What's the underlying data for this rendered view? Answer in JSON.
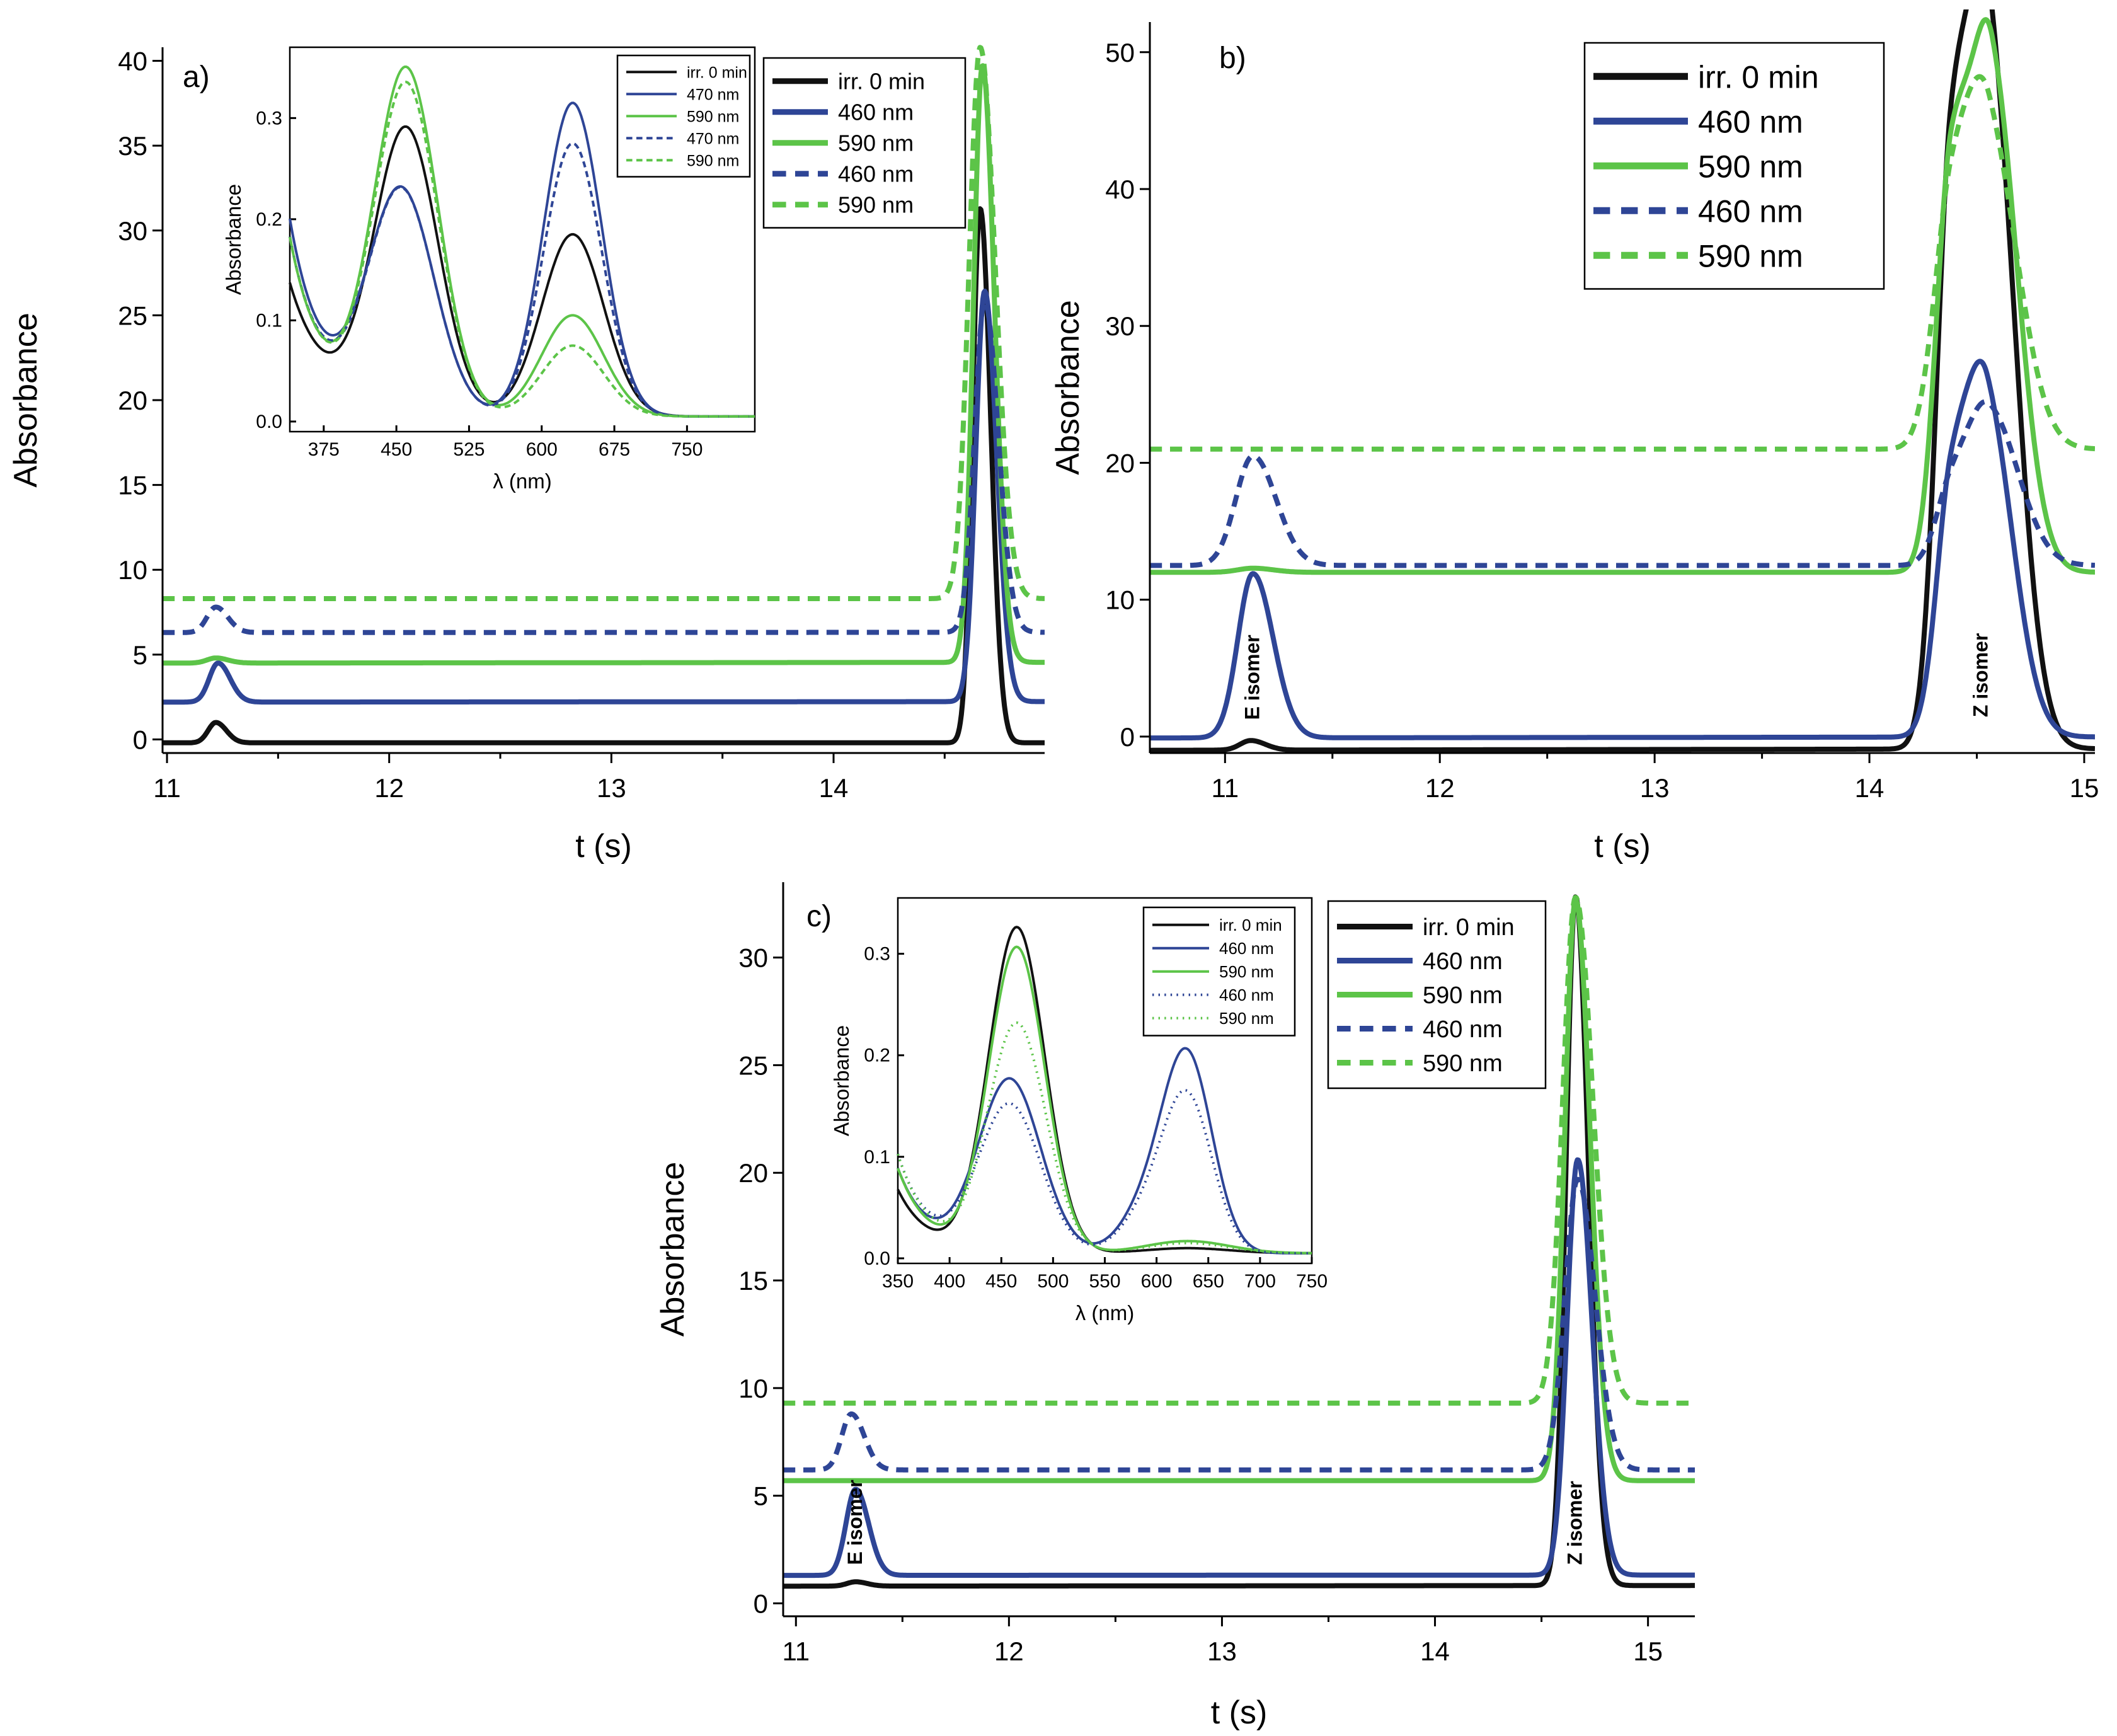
{
  "colors": {
    "black": "#111111",
    "blue": "#2e4596",
    "green": "#5cc448"
  },
  "chart_data": [
    {
      "panel": "a)",
      "type": "line",
      "xlabel": "t (s)",
      "ylabel": "Absorbance",
      "xlim": [
        10.98,
        14.95
      ],
      "ylim": [
        -0.8,
        40.8
      ],
      "xticks": [
        11,
        12,
        13,
        14
      ],
      "yticks": [
        0,
        5,
        10,
        15,
        20,
        25,
        30,
        35,
        40
      ],
      "legend": [
        {
          "name": "irr. 0 min",
          "color": "black",
          "dash": false
        },
        {
          "name": "460 nm",
          "color": "blue",
          "dash": false
        },
        {
          "name": "590 nm",
          "color": "green",
          "dash": false
        },
        {
          "name": "460 nm",
          "color": "blue",
          "dash": true
        },
        {
          "name": "590 nm",
          "color": "green",
          "dash": true
        }
      ],
      "series": [
        {
          "name": "irr. 0 min",
          "color": "black",
          "dash": false,
          "baseline": -0.2,
          "drift": 0,
          "peaks": [
            [
              11.22,
              1.2,
              0.035
            ],
            [
              14.66,
              31.5,
              0.035
            ]
          ]
        },
        {
          "name": "460 nm",
          "color": "blue",
          "dash": false,
          "baseline": 2.2,
          "drift": 0.2,
          "peaks": [
            [
              11.23,
              2.3,
              0.04
            ],
            [
              14.68,
              24.2,
              0.04
            ]
          ]
        },
        {
          "name": "590 nm",
          "color": "green",
          "dash": false,
          "baseline": 4.5,
          "drift": 0.3,
          "peaks": [
            [
              11.22,
              0.3,
              0.04
            ],
            [
              14.67,
              35.2,
              0.04
            ]
          ]
        },
        {
          "name": "460 nm",
          "color": "blue",
          "dash": true,
          "baseline": 6.3,
          "drift": 0.1,
          "peaks": [
            [
              11.22,
              1.5,
              0.04
            ],
            [
              14.68,
              19.5,
              0.045
            ]
          ]
        },
        {
          "name": "590 nm",
          "color": "green",
          "dash": true,
          "baseline": 8.3,
          "drift": 0,
          "peaks": [
            [
              14.66,
              32.5,
              0.05
            ]
          ]
        }
      ],
      "inset": {
        "xlabel": "λ (nm)",
        "ylabel": "Absorbance",
        "xlim": [
          340,
          820
        ],
        "ylim": [
          -0.01,
          0.37
        ],
        "xticks": [
          375,
          450,
          525,
          600,
          675,
          750
        ],
        "yticks": [
          0.0,
          0.1,
          0.2,
          0.3
        ],
        "yticklabels": [
          "0.0",
          "0.1",
          "0.2",
          "0.3"
        ],
        "legend": [
          {
            "name": "irr. 0 min",
            "color": "black",
            "dash": false
          },
          {
            "name": "470 nm",
            "color": "blue",
            "dash": false
          },
          {
            "name": "590 nm",
            "color": "green",
            "dash": false
          },
          {
            "name": "470 nm",
            "color": "blue",
            "dash": true
          },
          {
            "name": "590 nm",
            "color": "green",
            "dash": true
          }
        ],
        "series": [
          {
            "name": "irr. 0 min",
            "color": "black",
            "dash": false,
            "bands": [
              [
                460,
                0.28,
                33
              ],
              [
                632,
                0.18,
                32
              ]
            ],
            "tail": 0.08,
            "tailRate": 40
          },
          {
            "name": "470 nm",
            "color": "blue",
            "dash": false,
            "bands": [
              [
                455,
                0.22,
                34
              ],
              [
                632,
                0.31,
                30
              ]
            ],
            "tail": 0.11,
            "tailRate": 35
          },
          {
            "name": "590 nm",
            "color": "green",
            "dash": false,
            "bands": [
              [
                460,
                0.34,
                33
              ],
              [
                632,
                0.1,
                32
              ]
            ],
            "tail": 0.1,
            "tailRate": 35
          },
          {
            "name": "470 nm",
            "color": "blue",
            "dash": true,
            "bands": [
              [
                455,
                0.22,
                34
              ],
              [
                632,
                0.27,
                30
              ]
            ],
            "tail": 0.1,
            "tailRate": 35
          },
          {
            "name": "590 nm",
            "color": "green",
            "dash": true,
            "bands": [
              [
                460,
                0.325,
                33
              ],
              [
                632,
                0.07,
                32
              ]
            ],
            "tail": 0.1,
            "tailRate": 35
          }
        ]
      }
    },
    {
      "panel": "b)",
      "type": "line",
      "xlabel": "t (s)",
      "ylabel": "Absorbance",
      "xlim": [
        10.65,
        15.05
      ],
      "ylim": [
        -1.2,
        52.2
      ],
      "xticks": [
        11,
        12,
        13,
        14,
        15
      ],
      "yticks": [
        0,
        10,
        20,
        30,
        40,
        50
      ],
      "legend": [
        {
          "name": "irr. 0 min",
          "color": "black",
          "dash": false
        },
        {
          "name": "460 nm",
          "color": "blue",
          "dash": false
        },
        {
          "name": "590 nm",
          "color": "green",
          "dash": false
        },
        {
          "name": "460 nm",
          "color": "blue",
          "dash": true
        },
        {
          "name": "590 nm",
          "color": "green",
          "dash": true
        }
      ],
      "annotations": [
        {
          "text": "E isomer",
          "x": 11.13,
          "y": 0.3
        },
        {
          "text": "Z isomer",
          "x": 14.52,
          "y": 0.5
        }
      ],
      "series": [
        {
          "name": "irr. 0 min",
          "color": "black",
          "dash": false,
          "baseline": -1.0,
          "drift": 0.7,
          "peaks": [
            [
              11.12,
              0.7,
              0.05
            ],
            [
              14.38,
              40.5,
              0.07
            ],
            [
              14.56,
              49.0,
              0.09
            ]
          ]
        },
        {
          "name": "460 nm",
          "color": "blue",
          "dash": false,
          "baseline": -0.1,
          "drift": 0.5,
          "peaks": [
            [
              11.13,
              12.0,
              0.07
            ],
            [
              14.38,
              17.0,
              0.07
            ],
            [
              14.55,
              23.0,
              0.09
            ]
          ]
        },
        {
          "name": "590 nm",
          "color": "green",
          "dash": false,
          "baseline": 12.0,
          "drift": 0,
          "peaks": [
            [
              11.13,
              0.3,
              0.07
            ],
            [
              14.38,
              28.5,
              0.07
            ],
            [
              14.57,
              35.5,
              0.09
            ]
          ]
        },
        {
          "name": "460 nm",
          "color": "blue",
          "dash": true,
          "baseline": 12.5,
          "drift": 0,
          "peaks": [
            [
              11.13,
              8.0,
              0.08
            ],
            [
              14.38,
              5.0,
              0.07
            ],
            [
              14.56,
              11.0,
              0.1
            ]
          ]
        },
        {
          "name": "590 nm",
          "color": "green",
          "dash": true,
          "baseline": 21.0,
          "drift": 0,
          "peaks": [
            [
              14.38,
              17.0,
              0.08
            ],
            [
              14.56,
              21.5,
              0.1
            ]
          ]
        }
      ]
    },
    {
      "panel": "c)",
      "type": "line",
      "xlabel": "t (s)",
      "ylabel": "Absorbance",
      "xlim": [
        10.94,
        15.22
      ],
      "ylim": [
        -0.6,
        33.5
      ],
      "xticks": [
        11,
        12,
        13,
        14,
        15
      ],
      "yticks": [
        0,
        5,
        10,
        15,
        20,
        25,
        30
      ],
      "legend": [
        {
          "name": "irr. 0 min",
          "color": "black",
          "dash": false
        },
        {
          "name": "460 nm",
          "color": "blue",
          "dash": false
        },
        {
          "name": "590 nm",
          "color": "green",
          "dash": false
        },
        {
          "name": "460 nm",
          "color": "blue",
          "dash": true
        },
        {
          "name": "590 nm",
          "color": "green",
          "dash": true
        }
      ],
      "annotations": [
        {
          "text": "E isomer",
          "x": 11.28,
          "y": 1.2
        },
        {
          "text": "Z isomer",
          "x": 14.66,
          "y": 1.2
        }
      ],
      "series": [
        {
          "name": "irr. 0 min",
          "color": "black",
          "dash": false,
          "baseline": 0.8,
          "drift": 0.2,
          "peaks": [
            [
              11.28,
              0.2,
              0.04
            ],
            [
              14.66,
              32.0,
              0.045
            ]
          ]
        },
        {
          "name": "460 nm",
          "color": "blue",
          "dash": false,
          "baseline": 1.3,
          "drift": 0.1,
          "peaks": [
            [
              11.28,
              4.0,
              0.045
            ],
            [
              14.67,
              19.3,
              0.05
            ]
          ]
        },
        {
          "name": "590 nm",
          "color": "green",
          "dash": false,
          "baseline": 5.7,
          "drift": 0,
          "peaks": [
            [
              14.66,
              27.0,
              0.05
            ]
          ]
        },
        {
          "name": "460 nm",
          "color": "blue",
          "dash": true,
          "baseline": 6.2,
          "drift": 0,
          "peaks": [
            [
              11.26,
              2.6,
              0.045
            ],
            [
              14.67,
              13.5,
              0.06
            ]
          ]
        },
        {
          "name": "590 nm",
          "color": "green",
          "dash": true,
          "baseline": 9.3,
          "drift": 0,
          "peaks": [
            [
              14.66,
              23.5,
              0.06
            ]
          ]
        }
      ],
      "inset": {
        "xlabel": "λ (nm)",
        "ylabel": "Absorbance",
        "xlim": [
          350,
          750
        ],
        "ylim": [
          -0.005,
          0.355
        ],
        "xticks": [
          350,
          400,
          450,
          500,
          550,
          600,
          650,
          700,
          750
        ],
        "yticks": [
          0.0,
          0.1,
          0.2,
          0.3
        ],
        "yticklabels": [
          "0.0",
          "0.1",
          "0.2",
          "0.3"
        ],
        "legend": [
          {
            "name": "irr. 0 min",
            "color": "black",
            "dash": false
          },
          {
            "name": "460 nm",
            "color": "blue",
            "dash": false
          },
          {
            "name": "590 nm",
            "color": "green",
            "dash": false
          },
          {
            "name": "460 nm",
            "color": "blue",
            "dash": "dot"
          },
          {
            "name": "590 nm",
            "color": "green",
            "dash": "dot"
          }
        ],
        "series": [
          {
            "name": "irr. 0 min",
            "color": "black",
            "dash": false,
            "bands": [
              [
                465,
                0.32,
                27
              ],
              [
                630,
                0.005,
                40
              ]
            ],
            "tail": 0.045,
            "tailRate": 30
          },
          {
            "name": "460 nm",
            "color": "blue",
            "dash": false,
            "bands": [
              [
                458,
                0.17,
                30
              ],
              [
                630,
                0.19,
                24
              ],
              [
                590,
                0.04,
                25
              ]
            ],
            "tail": 0.06,
            "tailRate": 30
          },
          {
            "name": "590 nm",
            "color": "green",
            "dash": false,
            "bands": [
              [
                465,
                0.3,
                27
              ],
              [
                630,
                0.012,
                40
              ]
            ],
            "tail": 0.06,
            "tailRate": 30
          },
          {
            "name": "460 nm",
            "color": "blue",
            "dash": "dot",
            "bands": [
              [
                458,
                0.145,
                30
              ],
              [
                630,
                0.15,
                24
              ],
              [
                590,
                0.035,
                25
              ]
            ],
            "tail": 0.07,
            "tailRate": 30
          },
          {
            "name": "590 nm",
            "color": "green",
            "dash": "dot",
            "bands": [
              [
                465,
                0.225,
                28
              ],
              [
                630,
                0.01,
                40
              ]
            ],
            "tail": 0.07,
            "tailRate": 30
          }
        ]
      }
    }
  ]
}
